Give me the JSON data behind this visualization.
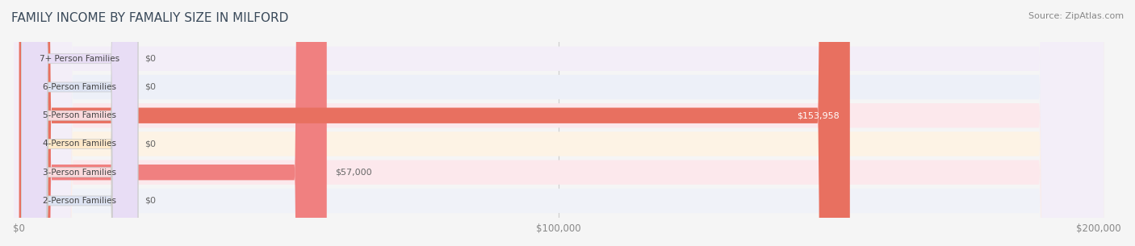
{
  "title": "FAMILY INCOME BY FAMALIY SIZE IN MILFORD",
  "source": "Source: ZipAtlas.com",
  "categories": [
    "2-Person Families",
    "3-Person Families",
    "4-Person Families",
    "5-Person Families",
    "6-Person Families",
    "7+ Person Families"
  ],
  "values": [
    0,
    57000,
    0,
    153958,
    0,
    0
  ],
  "bar_colors": [
    "#a8b4d8",
    "#f08080",
    "#f5c98a",
    "#e87060",
    "#b0c0e0",
    "#c5aed8"
  ],
  "label_bg_colors": [
    "#dde3f2",
    "#fadadd",
    "#fde8c8",
    "#fadadd",
    "#dde3f2",
    "#e8ddf5"
  ],
  "bar_height": 0.55,
  "xlim": [
    0,
    200000
  ],
  "xticks": [
    0,
    100000,
    200000
  ],
  "xtick_labels": [
    "$0",
    "$100,000",
    "$200,000"
  ],
  "background_color": "#f5f5f5",
  "row_bg_colors": [
    "#f0f2f8",
    "#fce8ec",
    "#fdf3e5",
    "#fce8ec",
    "#edf0f8",
    "#f3eef8"
  ],
  "title_color": "#3a4a5a",
  "tick_color": "#888888",
  "value_label_color_inside": "#ffffff",
  "value_label_color_outside": "#666666",
  "figsize": [
    14.06,
    3.05
  ],
  "dpi": 100
}
